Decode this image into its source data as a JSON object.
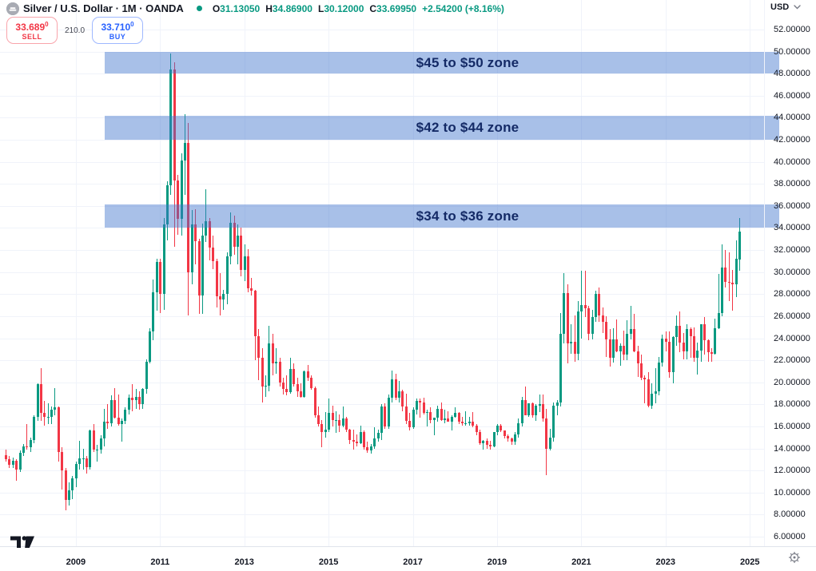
{
  "header": {
    "symbol_title": "Silver / U.S. Dollar · 1M · OANDA",
    "ohlc": {
      "open_label": "O",
      "open": "31.13050",
      "high_label": "H",
      "high": "34.86900",
      "low_label": "L",
      "low": "30.12000",
      "close_label": "C",
      "close": "33.69950",
      "change": "+2.54200 (+8.16%)"
    },
    "trade": {
      "sell_price_main": "33.689",
      "sell_price_sup": "0",
      "sell_label": "SELL",
      "spread": "210.0",
      "buy_price_main": "33.710",
      "buy_price_sup": "0",
      "buy_label": "BUY"
    }
  },
  "price_axis": {
    "currency_label": "USD",
    "tick_labels": [
      "52.00000",
      "50.00000",
      "48.00000",
      "46.00000",
      "44.00000",
      "42.00000",
      "40.00000",
      "38.00000",
      "36.00000",
      "34.00000",
      "32.00000",
      "30.00000",
      "28.00000",
      "26.00000",
      "24.00000",
      "22.00000",
      "20.00000",
      "18.00000",
      "16.00000",
      "14.00000",
      "12.00000",
      "10.00000",
      "8.00000",
      "6.00000"
    ]
  },
  "time_axis": {
    "labels": [
      "2009",
      "2011",
      "2013",
      "2015",
      "2017",
      "2019",
      "2021",
      "2023",
      "2025"
    ]
  },
  "zones": [
    {
      "label": "$45 to $50 zone",
      "band_top_price": 49.95,
      "band_bottom_price": 48.0
    },
    {
      "label": "$42 to $44 zone",
      "band_top_price": 44.2,
      "band_bottom_price": 42.0
    },
    {
      "label": "$34 to $36 zone",
      "band_top_price": 36.1,
      "band_bottom_price": 34.0
    }
  ],
  "chart_data": {
    "type": "candlestick",
    "title": "Silver / U.S. Dollar monthly candles (XAG/USD, OANDA)",
    "timeframe": "1M",
    "start_month": "2007-05",
    "ylim": [
      6,
      52
    ],
    "y_step": 2,
    "grid": true,
    "year_ticks": [
      2009,
      2011,
      2013,
      2015,
      2017,
      2019,
      2021,
      2023,
      2025
    ],
    "colors": {
      "up": "#089981",
      "down": "#f23645",
      "grid": "#f0f3fa",
      "zone_fill": "rgba(62,115,204,0.45)",
      "zone_text": "#142a66"
    },
    "candles": [
      [
        13.4,
        13.9,
        12.8,
        13.0
      ],
      [
        13.0,
        13.3,
        12.2,
        12.5
      ],
      [
        12.5,
        13.2,
        12.2,
        12.9
      ],
      [
        12.9,
        13.0,
        11.1,
        12.1
      ],
      [
        12.1,
        13.8,
        11.9,
        13.6
      ],
      [
        13.6,
        14.4,
        13.3,
        14.2
      ],
      [
        14.2,
        16.2,
        13.9,
        14.1
      ],
      [
        14.1,
        15.0,
        13.7,
        14.8
      ],
      [
        14.8,
        17.0,
        14.5,
        16.9
      ],
      [
        16.9,
        19.9,
        16.5,
        19.8
      ],
      [
        19.8,
        21.3,
        16.5,
        17.2
      ],
      [
        17.2,
        18.3,
        16.1,
        16.9
      ],
      [
        16.9,
        18.1,
        16.2,
        16.9
      ],
      [
        16.9,
        17.8,
        16.2,
        17.5
      ],
      [
        17.5,
        19.5,
        17.0,
        17.7
      ],
      [
        17.7,
        17.8,
        12.8,
        13.7
      ],
      [
        13.7,
        14.1,
        10.3,
        12.0
      ],
      [
        12.0,
        12.2,
        8.4,
        9.3
      ],
      [
        9.3,
        10.9,
        8.8,
        10.2
      ],
      [
        10.2,
        11.5,
        9.4,
        11.3
      ],
      [
        11.3,
        12.8,
        10.5,
        12.6
      ],
      [
        12.6,
        14.7,
        12.1,
        13.1
      ],
      [
        13.1,
        14.0,
        12.1,
        13.1
      ],
      [
        13.1,
        13.3,
        11.7,
        12.3
      ],
      [
        12.3,
        15.7,
        12.1,
        15.6
      ],
      [
        15.6,
        16.2,
        13.7,
        13.9
      ],
      [
        13.9,
        14.3,
        12.8,
        13.9
      ],
      [
        13.9,
        15.2,
        13.5,
        14.9
      ],
      [
        14.9,
        17.6,
        14.2,
        16.4
      ],
      [
        16.4,
        18.0,
        15.8,
        16.3
      ],
      [
        16.3,
        18.8,
        16.0,
        18.4
      ],
      [
        18.4,
        19.5,
        16.7,
        16.8
      ],
      [
        16.8,
        18.9,
        16.1,
        16.2
      ],
      [
        16.2,
        16.7,
        14.6,
        16.5
      ],
      [
        16.5,
        17.7,
        16.2,
        17.5
      ],
      [
        17.5,
        18.9,
        17.1,
        18.6
      ],
      [
        18.6,
        19.8,
        17.4,
        18.4
      ],
      [
        18.4,
        19.4,
        17.6,
        18.7
      ],
      [
        18.7,
        19.2,
        17.5,
        18.0
      ],
      [
        18.0,
        19.5,
        17.6,
        19.4
      ],
      [
        19.4,
        22.1,
        19.0,
        21.9
      ],
      [
        21.9,
        24.9,
        21.7,
        24.6
      ],
      [
        24.6,
        29.3,
        23.8,
        28.2
      ],
      [
        28.2,
        31.2,
        26.5,
        30.9
      ],
      [
        30.9,
        31.2,
        26.3,
        28.0
      ],
      [
        28.0,
        34.9,
        26.6,
        34.3
      ],
      [
        34.3,
        38.2,
        32.9,
        37.9
      ],
      [
        37.9,
        49.8,
        37.0,
        48.4
      ],
      [
        48.4,
        49.0,
        32.3,
        38.3
      ],
      [
        38.3,
        38.8,
        33.4,
        34.8
      ],
      [
        34.8,
        40.8,
        33.3,
        40.1
      ],
      [
        40.1,
        44.3,
        37.0,
        41.7
      ],
      [
        41.7,
        43.5,
        26.1,
        30.0
      ],
      [
        30.0,
        35.6,
        28.9,
        34.3
      ],
      [
        34.3,
        35.7,
        30.7,
        32.8
      ],
      [
        32.8,
        33.0,
        26.2,
        27.9
      ],
      [
        27.9,
        34.4,
        26.2,
        33.3
      ],
      [
        33.3,
        37.5,
        32.7,
        34.6
      ],
      [
        34.6,
        34.9,
        31.1,
        32.2
      ],
      [
        32.2,
        33.3,
        30.3,
        31.0
      ],
      [
        31.0,
        31.2,
        26.8,
        27.8
      ],
      [
        27.8,
        29.9,
        26.1,
        27.5
      ],
      [
        27.5,
        28.4,
        26.6,
        28.0
      ],
      [
        28.0,
        31.8,
        27.1,
        31.4
      ],
      [
        31.4,
        35.4,
        30.7,
        34.5
      ],
      [
        34.5,
        35.1,
        31.6,
        32.3
      ],
      [
        32.3,
        34.3,
        30.7,
        33.3
      ],
      [
        33.3,
        34.0,
        29.6,
        30.2
      ],
      [
        30.2,
        32.5,
        29.2,
        31.4
      ],
      [
        31.4,
        32.1,
        28.2,
        28.5
      ],
      [
        28.5,
        29.5,
        27.9,
        28.3
      ],
      [
        28.3,
        28.4,
        22.0,
        24.2
      ],
      [
        24.2,
        24.8,
        20.2,
        22.2
      ],
      [
        22.2,
        23.1,
        18.2,
        19.6
      ],
      [
        19.6,
        20.6,
        18.7,
        19.7
      ],
      [
        19.7,
        25.1,
        19.2,
        23.5
      ],
      [
        23.5,
        24.4,
        20.6,
        21.7
      ],
      [
        21.7,
        23.1,
        20.8,
        21.9
      ],
      [
        21.9,
        22.2,
        19.6,
        20.0
      ],
      [
        20.0,
        20.4,
        18.9,
        19.4
      ],
      [
        19.4,
        20.6,
        18.8,
        19.1
      ],
      [
        19.1,
        22.2,
        19.0,
        21.2
      ],
      [
        21.2,
        21.7,
        19.6,
        19.8
      ],
      [
        19.8,
        20.4,
        18.7,
        19.2
      ],
      [
        19.2,
        19.9,
        18.6,
        18.7
      ],
      [
        18.7,
        21.1,
        18.6,
        21.0
      ],
      [
        21.0,
        21.6,
        20.1,
        20.4
      ],
      [
        20.4,
        20.6,
        19.3,
        19.5
      ],
      [
        19.5,
        19.6,
        16.8,
        17.0
      ],
      [
        17.0,
        17.8,
        16.0,
        16.2
      ],
      [
        16.2,
        16.6,
        14.1,
        15.5
      ],
      [
        15.5,
        17.3,
        15.0,
        15.7
      ],
      [
        15.7,
        18.5,
        15.5,
        17.2
      ],
      [
        17.2,
        17.9,
        16.0,
        16.6
      ],
      [
        16.6,
        17.4,
        15.4,
        16.6
      ],
      [
        16.6,
        17.1,
        15.5,
        16.1
      ],
      [
        16.1,
        17.8,
        15.9,
        16.7
      ],
      [
        16.7,
        16.9,
        15.5,
        15.7
      ],
      [
        15.7,
        15.8,
        14.4,
        14.8
      ],
      [
        14.8,
        15.7,
        13.9,
        14.6
      ],
      [
        14.6,
        15.3,
        14.2,
        14.5
      ],
      [
        14.5,
        16.1,
        14.4,
        15.5
      ],
      [
        15.5,
        15.6,
        13.9,
        14.1
      ],
      [
        14.1,
        14.6,
        13.6,
        13.8
      ],
      [
        13.8,
        14.4,
        13.5,
        14.2
      ],
      [
        14.2,
        15.9,
        14.0,
        14.9
      ],
      [
        14.9,
        15.7,
        14.6,
        15.4
      ],
      [
        15.4,
        18.0,
        14.8,
        17.8
      ],
      [
        17.8,
        18.1,
        15.8,
        16.0
      ],
      [
        16.0,
        18.9,
        15.8,
        18.6
      ],
      [
        18.6,
        21.1,
        18.2,
        20.3
      ],
      [
        20.3,
        20.8,
        18.4,
        18.6
      ],
      [
        18.6,
        20.1,
        18.2,
        19.2
      ],
      [
        19.2,
        19.3,
        17.4,
        17.8
      ],
      [
        17.8,
        19.0,
        16.2,
        16.5
      ],
      [
        16.5,
        17.2,
        15.6,
        15.9
      ],
      [
        15.9,
        17.7,
        15.8,
        17.5
      ],
      [
        17.5,
        18.5,
        17.1,
        18.3
      ],
      [
        18.3,
        18.5,
        16.8,
        18.2
      ],
      [
        18.2,
        18.6,
        17.1,
        17.2
      ],
      [
        17.2,
        17.5,
        16.0,
        17.3
      ],
      [
        17.3,
        17.7,
        16.3,
        16.6
      ],
      [
        16.6,
        16.8,
        15.2,
        16.8
      ],
      [
        16.8,
        17.9,
        16.4,
        17.6
      ],
      [
        17.6,
        18.2,
        16.5,
        16.6
      ],
      [
        16.6,
        17.5,
        16.3,
        16.7
      ],
      [
        16.7,
        17.4,
        16.4,
        16.4
      ],
      [
        16.4,
        17.0,
        15.6,
        16.9
      ],
      [
        16.9,
        17.7,
        16.8,
        17.2
      ],
      [
        17.2,
        17.3,
        16.2,
        16.4
      ],
      [
        16.4,
        16.9,
        16.1,
        16.3
      ],
      [
        16.3,
        17.4,
        16.1,
        16.3
      ],
      [
        16.3,
        16.9,
        16.1,
        16.4
      ],
      [
        16.4,
        17.3,
        15.9,
        16.1
      ],
      [
        16.1,
        16.2,
        15.2,
        15.5
      ],
      [
        15.5,
        15.7,
        14.3,
        14.5
      ],
      [
        14.5,
        14.8,
        13.9,
        14.7
      ],
      [
        14.7,
        14.9,
        14.0,
        14.3
      ],
      [
        14.3,
        14.7,
        13.9,
        14.2
      ],
      [
        14.2,
        15.5,
        14.1,
        15.5
      ],
      [
        15.5,
        16.2,
        15.2,
        16.1
      ],
      [
        16.1,
        16.2,
        15.5,
        15.6
      ],
      [
        15.6,
        15.6,
        14.9,
        15.1
      ],
      [
        15.1,
        15.3,
        14.6,
        14.9
      ],
      [
        14.9,
        15.0,
        14.3,
        14.6
      ],
      [
        14.6,
        15.5,
        14.3,
        15.3
      ],
      [
        15.3,
        16.7,
        15.0,
        16.3
      ],
      [
        16.3,
        18.7,
        16.0,
        18.4
      ],
      [
        18.4,
        19.6,
        17.5,
        17.0
      ],
      [
        17.0,
        18.1,
        16.9,
        18.1
      ],
      [
        18.1,
        18.2,
        16.8,
        17.0
      ],
      [
        17.0,
        18.0,
        16.5,
        17.9
      ],
      [
        17.9,
        18.9,
        17.3,
        18.0
      ],
      [
        18.0,
        18.9,
        16.4,
        16.7
      ],
      [
        16.7,
        17.6,
        11.6,
        14.0
      ],
      [
        14.0,
        15.8,
        13.8,
        15.0
      ],
      [
        15.0,
        18.2,
        14.6,
        17.9
      ],
      [
        17.9,
        18.4,
        17.0,
        18.2
      ],
      [
        18.2,
        26.3,
        17.8,
        24.4
      ],
      [
        24.4,
        29.9,
        23.5,
        28.1
      ],
      [
        28.1,
        28.9,
        21.7,
        23.5
      ],
      [
        23.5,
        25.3,
        22.6,
        23.7
      ],
      [
        23.7,
        26.1,
        21.9,
        22.6
      ],
      [
        22.6,
        27.4,
        22.0,
        26.4
      ],
      [
        26.4,
        30.1,
        24.0,
        27.0
      ],
      [
        27.0,
        30.1,
        25.9,
        26.7
      ],
      [
        26.7,
        26.9,
        23.8,
        24.4
      ],
      [
        24.4,
        26.6,
        23.9,
        25.9
      ],
      [
        25.9,
        28.3,
        25.5,
        28.0
      ],
      [
        28.0,
        28.6,
        25.5,
        26.1
      ],
      [
        26.1,
        26.8,
        24.5,
        25.5
      ],
      [
        25.5,
        26.0,
        22.3,
        23.9
      ],
      [
        23.9,
        24.8,
        21.4,
        22.2
      ],
      [
        22.2,
        24.9,
        21.8,
        23.9
      ],
      [
        23.9,
        25.7,
        22.7,
        22.8
      ],
      [
        22.8,
        23.5,
        21.5,
        23.3
      ],
      [
        23.3,
        24.7,
        22.0,
        22.5
      ],
      [
        22.5,
        25.6,
        22.0,
        24.4
      ],
      [
        24.4,
        26.9,
        23.9,
        24.8
      ],
      [
        24.8,
        26.2,
        22.7,
        22.8
      ],
      [
        22.8,
        23.3,
        20.5,
        21.7
      ],
      [
        21.7,
        22.5,
        20.2,
        20.4
      ],
      [
        20.4,
        20.6,
        18.1,
        20.3
      ],
      [
        20.3,
        20.9,
        17.7,
        17.9
      ],
      [
        17.9,
        19.9,
        17.6,
        19.0
      ],
      [
        19.0,
        21.3,
        18.1,
        19.2
      ],
      [
        19.2,
        22.3,
        18.8,
        21.8
      ],
      [
        21.8,
        24.3,
        21.4,
        24.0
      ],
      [
        24.0,
        24.6,
        22.8,
        23.7
      ],
      [
        23.7,
        24.6,
        20.4,
        20.9
      ],
      [
        20.9,
        24.2,
        19.9,
        24.1
      ],
      [
        24.1,
        26.1,
        23.3,
        25.1
      ],
      [
        25.1,
        26.4,
        22.7,
        23.6
      ],
      [
        23.6,
        24.5,
        22.1,
        22.8
      ],
      [
        22.8,
        25.3,
        22.1,
        24.8
      ],
      [
        24.8,
        25.0,
        22.2,
        24.2
      ],
      [
        24.2,
        25.0,
        21.9,
        22.2
      ],
      [
        22.2,
        23.6,
        20.7,
        22.9
      ],
      [
        22.9,
        25.3,
        21.9,
        25.3
      ],
      [
        25.3,
        25.9,
        22.5,
        23.8
      ],
      [
        23.8,
        23.9,
        21.9,
        22.7
      ],
      [
        22.7,
        23.1,
        21.9,
        22.6
      ],
      [
        22.6,
        25.8,
        22.5,
        24.9
      ],
      [
        24.9,
        29.8,
        24.8,
        26.3
      ],
      [
        26.3,
        32.5,
        26.0,
        30.4
      ],
      [
        30.4,
        32.0,
        28.6,
        29.1
      ],
      [
        29.1,
        31.8,
        27.4,
        29.0
      ],
      [
        29.0,
        30.2,
        26.5,
        28.9
      ],
      [
        28.9,
        32.9,
        27.7,
        31.2
      ],
      [
        31.13,
        34.87,
        30.12,
        33.7
      ]
    ]
  }
}
